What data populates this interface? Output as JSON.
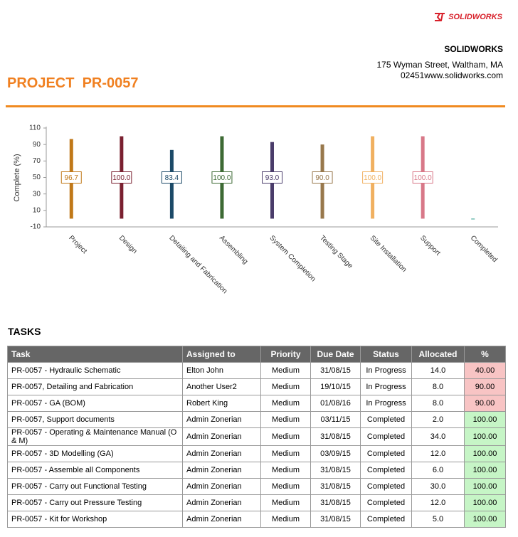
{
  "header": {
    "logo": "SOLIDWORKS",
    "company": "SOLIDWORKS",
    "address_line1": "175 Wyman Street, Waltham, MA",
    "address_line2": "02451www.solidworks.com"
  },
  "title": "PROJECT  PR-0057",
  "chart_data": {
    "type": "bar",
    "y_label": "Complete (%)",
    "categories": [
      "Project",
      "Design",
      "Detailing and Fabrication",
      "Assembling",
      "System Completion",
      "Testing Stage",
      "Site Installation",
      "Support",
      "Completed"
    ],
    "values": [
      96.7,
      100,
      83.4,
      100,
      93,
      90,
      100,
      100,
      0
    ],
    "value_labels": [
      "96.7",
      "100.0",
      "83.4",
      "100.0",
      "93.0",
      "90.0",
      "100.0",
      "100.0",
      null
    ],
    "colors": [
      "#c07818",
      "#7a2030",
      "#1c4a68",
      "#3d6a34",
      "#4a3c6a",
      "#98784c",
      "#f0b060",
      "#d87888",
      "#2a9a8a"
    ],
    "ylim": [
      -10,
      110
    ],
    "yticks": [
      -10,
      10,
      30,
      50,
      70,
      90,
      110
    ],
    "grid": false
  },
  "tasks_heading": "TASKS",
  "table": {
    "columns": [
      "Task",
      "Assigned to",
      "Priority",
      "Due Date",
      "Status",
      "Allocated",
      "%"
    ],
    "rows": [
      [
        "PR-0057 - Hydraulic Schematic",
        "Elton John",
        "Medium",
        "31/08/15",
        "In Progress",
        "14.0",
        "40.00"
      ],
      [
        "PR-0057, Detailing and Fabrication",
        "Another User2",
        "Medium",
        "19/10/15",
        "In Progress",
        "8.0",
        "90.00"
      ],
      [
        "PR-0057 - GA (BOM)",
        "Robert King",
        "Medium",
        "01/08/16",
        "In Progress",
        "8.0",
        "90.00"
      ],
      [
        "PR-0057, Support documents",
        "Admin Zonerian",
        "Medium",
        "03/11/15",
        "Completed",
        "2.0",
        "100.00"
      ],
      [
        "PR-0057 - Operating & Maintenance Manual (O & M)",
        "Admin Zonerian",
        "Medium",
        "31/08/15",
        "Completed",
        "34.0",
        "100.00"
      ],
      [
        "PR-0057 - 3D Modelling (GA)",
        "Admin Zonerian",
        "Medium",
        "03/09/15",
        "Completed",
        "12.0",
        "100.00"
      ],
      [
        "PR-0057 - Assemble all Components",
        "Admin Zonerian",
        "Medium",
        "31/08/15",
        "Completed",
        "6.0",
        "100.00"
      ],
      [
        "PR-0057 - Carry out Functional Testing",
        "Admin Zonerian",
        "Medium",
        "31/08/15",
        "Completed",
        "30.0",
        "100.00"
      ],
      [
        "PR-0057 - Carry out Pressure Testing",
        "Admin Zonerian",
        "Medium",
        "31/08/15",
        "Completed",
        "12.0",
        "100.00"
      ],
      [
        "PR-0057 - Kit for Workshop",
        "Admin Zonerian",
        "Medium",
        "31/08/15",
        "Completed",
        "5.0",
        "100.00"
      ]
    ]
  }
}
